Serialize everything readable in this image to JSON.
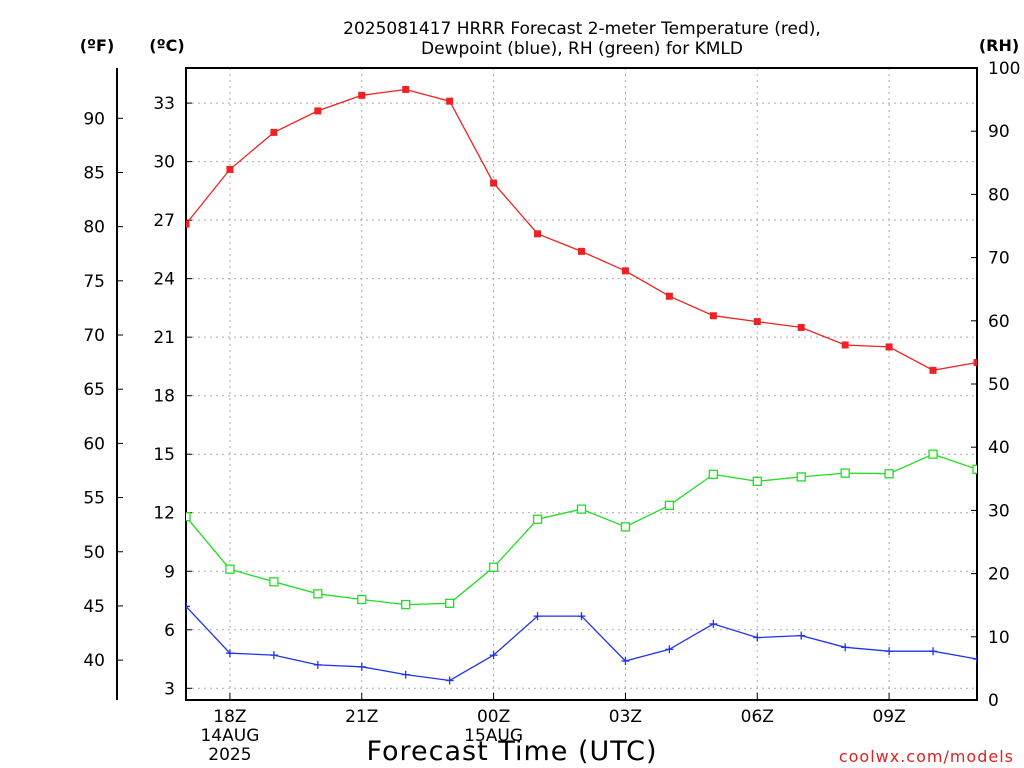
{
  "chart_data": {
    "type": "line",
    "title_lines": [
      "2025081417 HRRR Forecast 2-meter Temperature (red),",
      "Dewpoint (blue), RH (green) for KMLD"
    ],
    "xlabel": "Forecast Time (UTC)",
    "footer": "coolwx.com/models",
    "x_hours": [
      17,
      18,
      19,
      20,
      21,
      22,
      23,
      24,
      25,
      26,
      27,
      28,
      29,
      30,
      31,
      32,
      33,
      34,
      35
    ],
    "x_range": [
      17,
      35
    ],
    "x_ticks": [
      {
        "hour": 18,
        "lines": [
          "18Z",
          "14AUG",
          "2025"
        ]
      },
      {
        "hour": 21,
        "lines": [
          "21Z"
        ]
      },
      {
        "hour": 24,
        "lines": [
          "00Z",
          "15AUG"
        ]
      },
      {
        "hour": 27,
        "lines": [
          "03Z"
        ]
      },
      {
        "hour": 30,
        "lines": [
          "06Z"
        ]
      },
      {
        "hour": 33,
        "lines": [
          "09Z"
        ]
      }
    ],
    "grid": true,
    "axes": {
      "fahrenheit": {
        "label": "(ºF)",
        "ticks": [
          "40",
          "45",
          "50",
          "55",
          "60",
          "65",
          "70",
          "75",
          "80",
          "85",
          "90"
        ]
      },
      "celsius": {
        "label": "(ºC)",
        "range": [
          2.4,
          34.8
        ],
        "ticks": [
          "3",
          "6",
          "9",
          "12",
          "15",
          "18",
          "21",
          "24",
          "27",
          "30",
          "33"
        ]
      },
      "rh": {
        "label": "(RH)",
        "range": [
          0,
          100
        ],
        "ticks": [
          "0",
          "10",
          "20",
          "30",
          "40",
          "50",
          "60",
          "70",
          "80",
          "90",
          "100"
        ]
      }
    },
    "series": [
      {
        "name": "Temperature",
        "axis": "celsius",
        "color": "#ee2222",
        "marker": "filled-square",
        "values": [
          26.8,
          29.6,
          31.5,
          32.6,
          33.4,
          33.7,
          33.1,
          28.9,
          26.3,
          25.4,
          24.4,
          23.1,
          22.1,
          21.8,
          21.5,
          20.6,
          20.5,
          19.3,
          19.7
        ]
      },
      {
        "name": "Dewpoint",
        "axis": "celsius",
        "color": "#2233ee",
        "marker": "plus",
        "values": [
          7.2,
          4.8,
          4.7,
          4.2,
          4.1,
          3.7,
          3.4,
          4.7,
          6.7,
          6.7,
          4.4,
          5.0,
          6.3,
          5.6,
          5.7,
          5.1,
          4.9,
          4.9,
          4.5
        ]
      },
      {
        "name": "RH",
        "axis": "rh",
        "color": "#22dd22",
        "marker": "open-square",
        "values": [
          29.0,
          20.7,
          18.7,
          16.8,
          15.9,
          15.1,
          15.3,
          21.0,
          28.6,
          30.2,
          27.4,
          30.8,
          35.7,
          34.6,
          35.3,
          35.9,
          35.8,
          38.9,
          36.5
        ]
      }
    ]
  }
}
